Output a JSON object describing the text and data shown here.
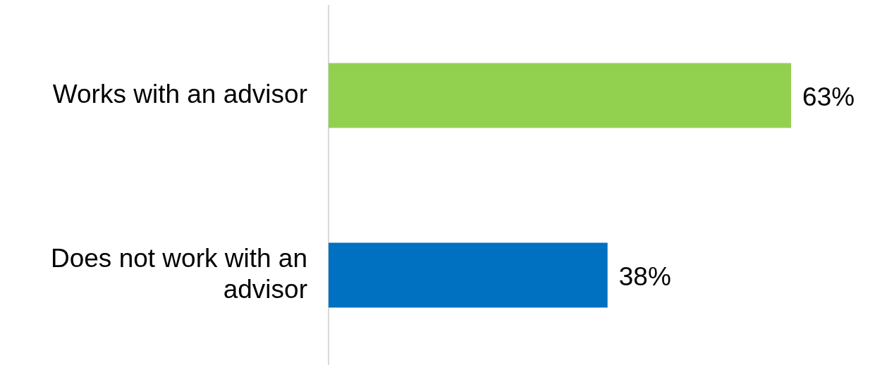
{
  "chart_data": {
    "type": "bar",
    "orientation": "horizontal",
    "categories": [
      "Works with an advisor",
      "Does not work with an advisor"
    ],
    "values": [
      63,
      38
    ],
    "colors": [
      "#92d050",
      "#0070c0"
    ],
    "value_labels": [
      "63%",
      "38%"
    ],
    "tick_labels": "y"
  }
}
